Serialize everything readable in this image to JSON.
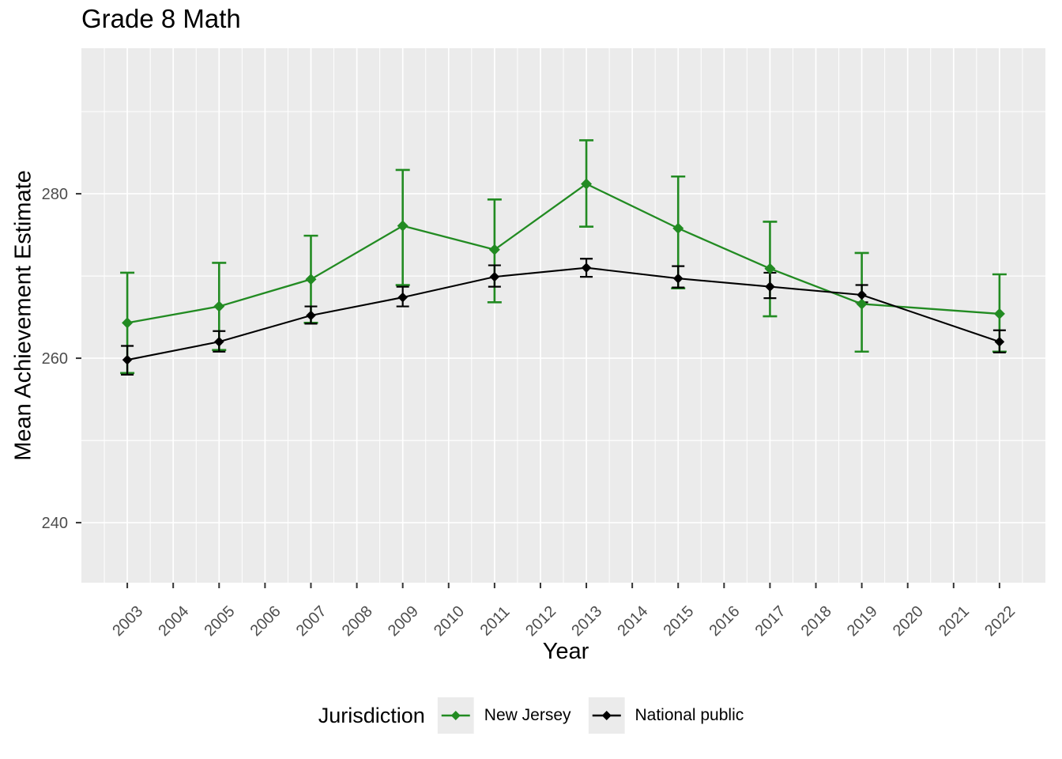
{
  "chart": {
    "title": "Grade 8 Math",
    "xlabel": "Year",
    "ylabel": "Mean Achievement Estimate"
  },
  "chart_data": {
    "type": "line",
    "title": "Grade 8 Math",
    "xlabel": "Year",
    "ylabel": "Mean Achievement Estimate",
    "x": [
      2003,
      2005,
      2007,
      2009,
      2011,
      2013,
      2015,
      2017,
      2019,
      2022
    ],
    "series": [
      {
        "name": "New Jersey",
        "color": "#228B22",
        "values": [
          264.3,
          266.3,
          269.6,
          276.1,
          273.2,
          281.2,
          275.8,
          270.9,
          266.6,
          265.4
        ],
        "ci_low": [
          258.2,
          261.0,
          264.3,
          268.9,
          266.8,
          276.0,
          268.5,
          265.1,
          260.8,
          260.8
        ],
        "ci_high": [
          270.4,
          271.6,
          274.9,
          282.9,
          279.3,
          286.5,
          282.1,
          276.6,
          272.8,
          270.2
        ]
      },
      {
        "name": "National public",
        "color": "#000000",
        "values": [
          259.8,
          262.0,
          265.2,
          267.4,
          269.9,
          271.0,
          269.7,
          268.7,
          267.7,
          262.0
        ],
        "ci_low": [
          258.0,
          260.8,
          264.2,
          266.3,
          268.7,
          269.9,
          268.6,
          267.3,
          266.8,
          260.7
        ],
        "ci_high": [
          261.5,
          263.3,
          266.3,
          268.7,
          271.3,
          272.1,
          271.2,
          270.4,
          268.9,
          263.4
        ]
      }
    ],
    "x_ticks": [
      2003,
      2004,
      2005,
      2006,
      2007,
      2008,
      2009,
      2010,
      2011,
      2012,
      2013,
      2014,
      2015,
      2016,
      2017,
      2018,
      2019,
      2020,
      2021,
      2022
    ],
    "y_ticks": [
      240,
      260,
      280
    ],
    "xlim": [
      2002,
      2023
    ],
    "ylim": [
      232.7,
      297.7
    ],
    "grid": true,
    "error_bars": true,
    "legend_title": "Jurisdiction",
    "legend_position": "bottom",
    "panel_bg": "#EBEBEB",
    "grid_color": "#FFFFFF",
    "tick_label_color": "#4D4D4D",
    "tick_mark_color": "#333333"
  }
}
